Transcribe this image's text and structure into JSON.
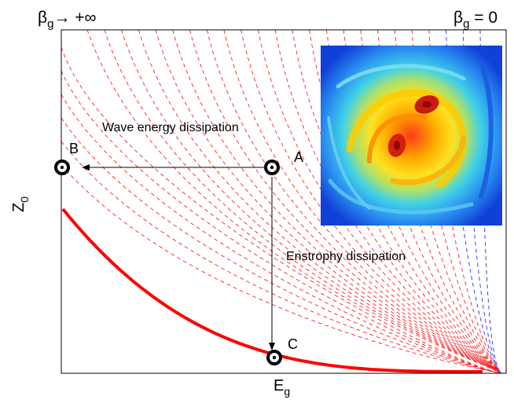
{
  "top_left_label": {
    "main": "β",
    "sub": "g",
    "rest": "→ +∞"
  },
  "top_right_label": {
    "main": "β",
    "sub": "g",
    "rest": " = 0"
  },
  "y_axis_label": {
    "main": "Z",
    "sub": "0"
  },
  "x_axis_label": {
    "main": "E",
    "sub": "g"
  },
  "points": {
    "A": "A",
    "B": "B",
    "C": "C"
  },
  "annotations": {
    "wave": "Wave energy dissipation",
    "enstrophy": "Enstrophy dissipation"
  },
  "colors": {
    "red_curve": "#ff0000",
    "red_dashes": "#ff2020",
    "blue_dashes": "#2030ff",
    "frame": "#000000"
  },
  "icons": {
    "vortex_inset": "turbulent-vorticity-field-image",
    "point_marker": "ring-marker"
  }
}
